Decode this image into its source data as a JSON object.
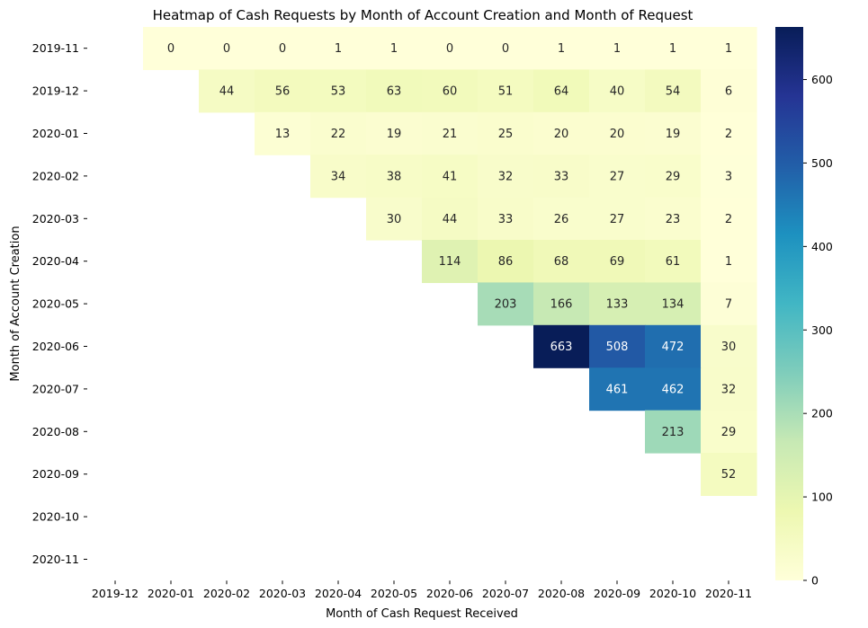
{
  "chart_data": {
    "type": "heatmap",
    "title": "Heatmap of Cash Requests by Month of Account Creation and Month of Request",
    "xlabel": "Month of Cash Request Received",
    "ylabel": "Month of Account Creation",
    "x_categories": [
      "2019-12",
      "2020-01",
      "2020-02",
      "2020-03",
      "2020-04",
      "2020-05",
      "2020-06",
      "2020-07",
      "2020-08",
      "2020-09",
      "2020-10",
      "2020-11"
    ],
    "y_categories": [
      "2019-11",
      "2019-12",
      "2020-01",
      "2020-02",
      "2020-03",
      "2020-04",
      "2020-05",
      "2020-06",
      "2020-07",
      "2020-08",
      "2020-09",
      "2020-10",
      "2020-11"
    ],
    "values": [
      [
        null,
        0,
        0,
        0,
        1,
        1,
        0,
        0,
        1,
        1,
        1,
        1
      ],
      [
        null,
        null,
        44,
        56,
        53,
        63,
        60,
        51,
        64,
        40,
        54,
        6
      ],
      [
        null,
        null,
        null,
        13,
        22,
        19,
        21,
        25,
        20,
        20,
        19,
        2
      ],
      [
        null,
        null,
        null,
        null,
        34,
        38,
        41,
        32,
        33,
        27,
        29,
        3
      ],
      [
        null,
        null,
        null,
        null,
        null,
        30,
        44,
        33,
        26,
        27,
        23,
        2
      ],
      [
        null,
        null,
        null,
        null,
        null,
        null,
        114,
        86,
        68,
        69,
        61,
        1
      ],
      [
        null,
        null,
        null,
        null,
        null,
        null,
        null,
        203,
        166,
        133,
        134,
        7
      ],
      [
        null,
        null,
        null,
        null,
        null,
        null,
        null,
        null,
        663,
        508,
        472,
        30
      ],
      [
        null,
        null,
        null,
        null,
        null,
        null,
        null,
        null,
        null,
        461,
        462,
        32
      ],
      [
        null,
        null,
        null,
        null,
        null,
        null,
        null,
        null,
        null,
        null,
        213,
        29
      ],
      [
        null,
        null,
        null,
        null,
        null,
        null,
        null,
        null,
        null,
        null,
        null,
        52
      ],
      [
        null,
        null,
        null,
        null,
        null,
        null,
        null,
        null,
        null,
        null,
        null,
        null
      ],
      [
        null,
        null,
        null,
        null,
        null,
        null,
        null,
        null,
        null,
        null,
        null,
        null
      ]
    ],
    "colormap": "YlGnBu",
    "colorbar": {
      "min": 0,
      "max": 663,
      "ticks": [
        0,
        100,
        200,
        300,
        400,
        500,
        600
      ]
    },
    "annotated": true
  }
}
